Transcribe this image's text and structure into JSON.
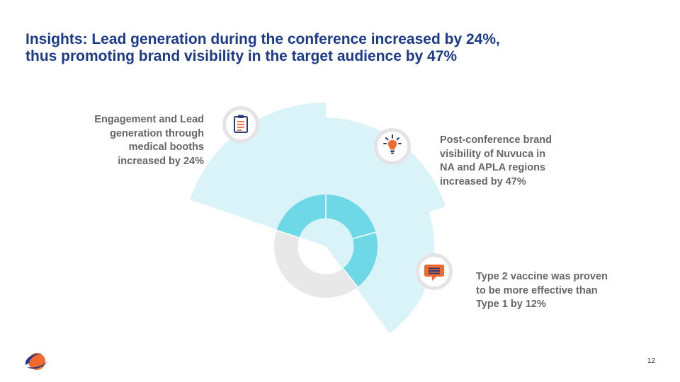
{
  "slide": {
    "title_line1": "Insights: Lead generation during the conference increased by 24%,",
    "title_line2": "thus promoting brand visibility in the target audience by 47%",
    "page_number": "12"
  },
  "callouts": [
    {
      "icon": "clipboard-icon",
      "lines": [
        "Engagement and Lead",
        "generation through",
        "medical booths",
        "increased by 24%"
      ]
    },
    {
      "icon": "lightbulb-icon",
      "lines": [
        "Post-conference brand",
        "visibility of Nuvuca in",
        "NA and APLA regions",
        "increased by 47%"
      ]
    },
    {
      "icon": "chat-bubble-icon",
      "lines": [
        "Type 2 vaccine was proven",
        "to be more effective than",
        "Type 1 by 12%"
      ]
    }
  ],
  "colors": {
    "title": "#1b3a8c",
    "callout_text": "#666666",
    "fan_fill": "#d9f3f8",
    "donut_accent": "#6ed8e6",
    "donut_base": "#e8e8e8",
    "icon_navy": "#2d3a78",
    "icon_orange": "#f06a30",
    "icon_ring": "#e4e4e6"
  }
}
